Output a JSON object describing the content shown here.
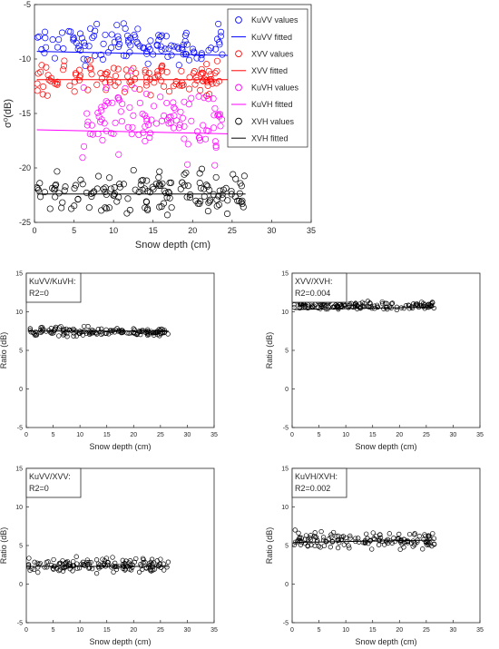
{
  "chart_data": [
    {
      "type": "scatter",
      "xlabel": "Snow depth (cm)",
      "ylabel": "σ⁰(dB)",
      "xlim": [
        0,
        35
      ],
      "ylim": [
        -25,
        -5
      ],
      "xticks": [
        "0",
        "5",
        "10",
        "15",
        "20",
        "25",
        "30",
        "35"
      ],
      "yticks": [
        "-5",
        "-10",
        "-15",
        "-20",
        "-25"
      ],
      "legend_position": "top-right",
      "series": [
        {
          "name": "KuVV values",
          "kind": "points",
          "color": "#0000ff",
          "x_range": [
            0.3,
            23.8
          ],
          "y_center": -8.7,
          "y_spread": 1.6,
          "count": 120
        },
        {
          "name": "KuVV fitted",
          "kind": "line",
          "color": "#0000ff",
          "x": [
            0.3,
            26.7
          ],
          "y": [
            -9.3,
            -9.7
          ]
        },
        {
          "name": "XVV values",
          "kind": "points",
          "color": "#ff0000",
          "x_range": [
            0.3,
            23.8
          ],
          "y_center": -11.7,
          "y_spread": 1.4,
          "count": 120
        },
        {
          "name": "XVV fitted",
          "kind": "line",
          "color": "#ff0000",
          "x": [
            0.3,
            26.7
          ],
          "y": [
            -11.9,
            -11.9
          ]
        },
        {
          "name": "KuVH values",
          "kind": "points",
          "color": "#ff00ff",
          "x_range": [
            6.0,
            23.8
          ],
          "y_center": -15.5,
          "y_spread": 3.2,
          "count": 110
        },
        {
          "name": "KuVH fitted",
          "kind": "line",
          "color": "#ff00ff",
          "x": [
            0.3,
            26.7
          ],
          "y": [
            -16.5,
            -16.9
          ]
        },
        {
          "name": "XVH values",
          "kind": "points",
          "color": "#000000",
          "x_range": [
            0.3,
            26.7
          ],
          "y_center": -22.3,
          "y_spread": 1.8,
          "count": 150
        },
        {
          "name": "XVH fitted",
          "kind": "line",
          "color": "#000000",
          "x": [
            0.3,
            26.7
          ],
          "y": [
            -22.4,
            -22.4
          ]
        }
      ]
    },
    {
      "type": "scatter",
      "label": [
        "KuVV/KuVH:",
        "R2=0"
      ],
      "xlabel": "Snow depth (cm)",
      "ylabel": "Ratio (dB)",
      "xlim": [
        0,
        35
      ],
      "ylim": [
        -5,
        15
      ],
      "xticks": [
        "0",
        "5",
        "10",
        "15",
        "20",
        "25",
        "30",
        "35"
      ],
      "yticks": [
        "15",
        "10",
        "5",
        "0",
        "-5"
      ],
      "points": {
        "color": "#000000",
        "x_range": [
          0.3,
          26.5
        ],
        "y_center": 7.4,
        "y_spread": 0.55,
        "count": 150
      },
      "fit": {
        "x": [
          0.3,
          26.5
        ],
        "y": [
          7.5,
          7.5
        ]
      }
    },
    {
      "type": "scatter",
      "label": [
        "XVV/XVH:",
        "R2=0.004"
      ],
      "xlabel": "Snow depth (cm)",
      "ylabel": "Ratio (dB)",
      "xlim": [
        0,
        35
      ],
      "ylim": [
        -5,
        15
      ],
      "xticks": [
        "0",
        "5",
        "10",
        "15",
        "20",
        "25",
        "30",
        "35"
      ],
      "yticks": [
        "15",
        "10",
        "5",
        "0",
        "-5"
      ],
      "points": {
        "color": "#000000",
        "x_range": [
          0.3,
          26.5
        ],
        "y_center": 10.8,
        "y_spread": 0.45,
        "count": 150
      },
      "fit": {
        "x": [
          0.3,
          26.5
        ],
        "y": [
          10.3,
          10.6
        ]
      }
    },
    {
      "type": "scatter",
      "label": [
        "KuVV/XVV:",
        "R2=0"
      ],
      "xlabel": "Snow depth (cm)",
      "ylabel": "Ratio (dB)",
      "xlim": [
        0,
        35
      ],
      "ylim": [
        -5,
        15
      ],
      "xticks": [
        "0",
        "5",
        "10",
        "15",
        "20",
        "25",
        "30",
        "35"
      ],
      "yticks": [
        "15",
        "10",
        "5",
        "0",
        "-5"
      ],
      "points": {
        "color": "#000000",
        "x_range": [
          0.3,
          26.5
        ],
        "y_center": 2.5,
        "y_spread": 0.9,
        "count": 150
      },
      "fit": {
        "x": [
          0.3,
          26.5
        ],
        "y": [
          2.3,
          2.3
        ]
      }
    },
    {
      "type": "scatter",
      "label": [
        "KuVH/XVH:",
        "R2=0.002"
      ],
      "xlabel": "Snow depth (cm)",
      "ylabel": "Ratio (dB)",
      "xlim": [
        0,
        35
      ],
      "ylim": [
        -5,
        15
      ],
      "xticks": [
        "0",
        "5",
        "10",
        "15",
        "20",
        "25",
        "30",
        "35"
      ],
      "yticks": [
        "15",
        "10",
        "5",
        "0",
        "-5"
      ],
      "points": {
        "color": "#000000",
        "x_range": [
          0.3,
          26.5
        ],
        "y_center": 5.7,
        "y_spread": 1.1,
        "count": 150
      },
      "fit": {
        "x": [
          0.3,
          26.5
        ],
        "y": [
          5.4,
          5.7
        ]
      }
    }
  ]
}
